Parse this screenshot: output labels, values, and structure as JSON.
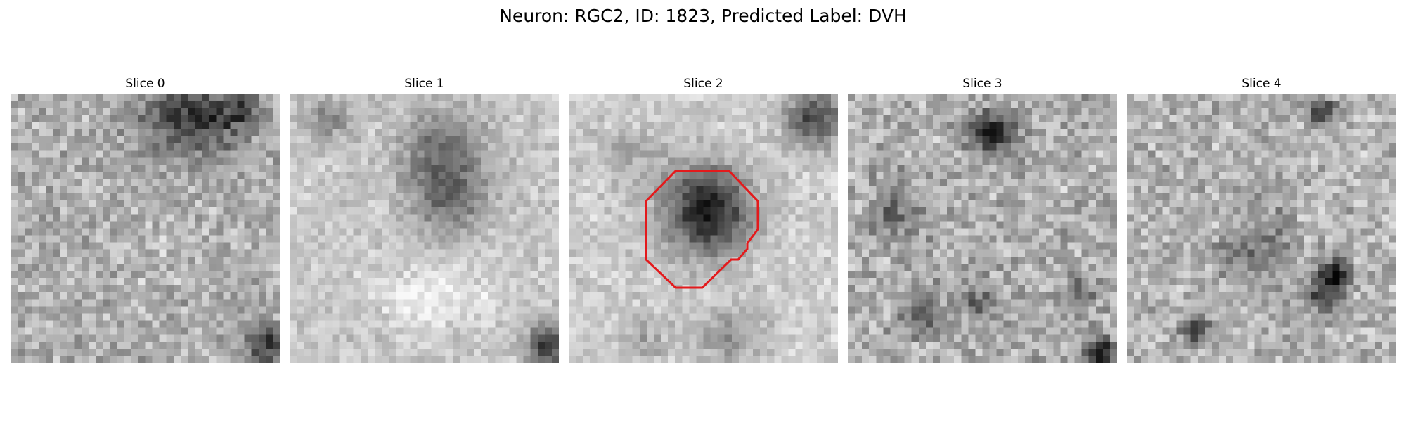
{
  "figure": {
    "title": "Neuron: RGC2, ID: 1823, Predicted Label: DVH"
  },
  "panels": [
    {
      "title": "Slice 0"
    },
    {
      "title": "Slice 1"
    },
    {
      "title": "Slice 2"
    },
    {
      "title": "Slice 3"
    },
    {
      "title": "Slice 4"
    }
  ],
  "contour_color": "#e31a1c"
}
